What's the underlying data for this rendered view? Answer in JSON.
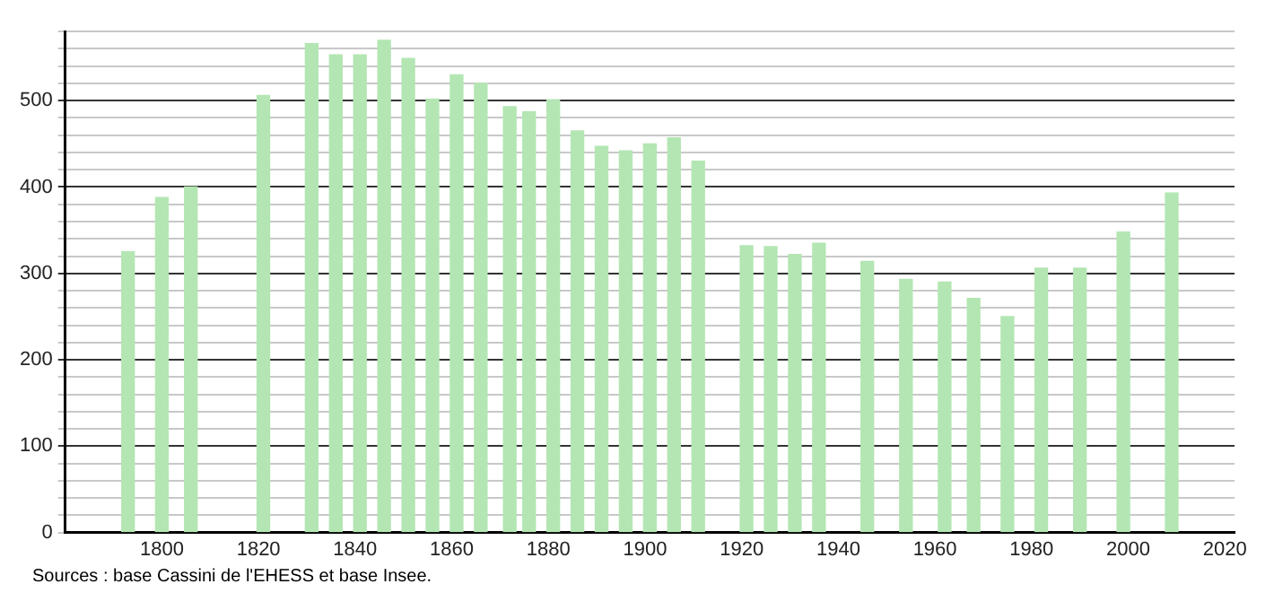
{
  "chart_data": {
    "type": "bar",
    "x": [
      1793,
      1800,
      1806,
      1821,
      1831,
      1836,
      1841,
      1846,
      1851,
      1856,
      1861,
      1866,
      1872,
      1876,
      1881,
      1886,
      1891,
      1896,
      1901,
      1906,
      1911,
      1921,
      1926,
      1931,
      1936,
      1946,
      1954,
      1962,
      1968,
      1975,
      1982,
      1990,
      1999,
      2009
    ],
    "values": [
      325,
      388,
      400,
      506,
      566,
      553,
      553,
      570,
      549,
      502,
      530,
      520,
      493,
      487,
      501,
      465,
      447,
      442,
      450,
      457,
      430,
      332,
      331,
      322,
      335,
      314,
      293,
      290,
      271,
      250,
      306,
      306,
      348,
      393
    ],
    "color": "#b3e6b3",
    "xlim": [
      1780,
      2022
    ],
    "xticks": [
      1800,
      1820,
      1840,
      1860,
      1880,
      1900,
      1920,
      1940,
      1960,
      1980,
      2000,
      2020
    ],
    "ylim": [
      0,
      580
    ],
    "yticks": [
      0,
      {
        "value": 20,
        "label": null
      },
      {
        "value": 40,
        "label": null
      },
      {
        "value": 60,
        "label": null
      },
      {
        "value": 80,
        "label": null
      },
      100,
      {
        "value": 120,
        "label": null
      },
      {
        "value": 140,
        "label": null
      },
      {
        "value": 160,
        "label": null
      },
      {
        "value": 180,
        "label": null
      },
      200,
      {
        "value": 220,
        "label": null
      },
      {
        "value": 240,
        "label": null
      },
      {
        "value": 260,
        "label": null
      },
      {
        "value": 280,
        "label": null
      },
      300,
      {
        "value": 320,
        "label": null
      },
      {
        "value": 340,
        "label": null
      },
      {
        "value": 360,
        "label": null
      },
      {
        "value": 380,
        "label": null
      },
      400,
      {
        "value": 420,
        "label": null
      },
      {
        "value": 440,
        "label": null
      },
      {
        "value": 460,
        "label": null
      },
      {
        "value": 480,
        "label": null
      },
      500,
      {
        "value": 520,
        "label": null
      },
      {
        "value": 540,
        "label": null
      },
      {
        "value": 560,
        "label": null
      },
      {
        "value": 580,
        "label": null
      }
    ],
    "grid": "y",
    "legend": false,
    "annotations": [
      "Sources : base Cassini de l'EHESS et base Insee."
    ]
  }
}
